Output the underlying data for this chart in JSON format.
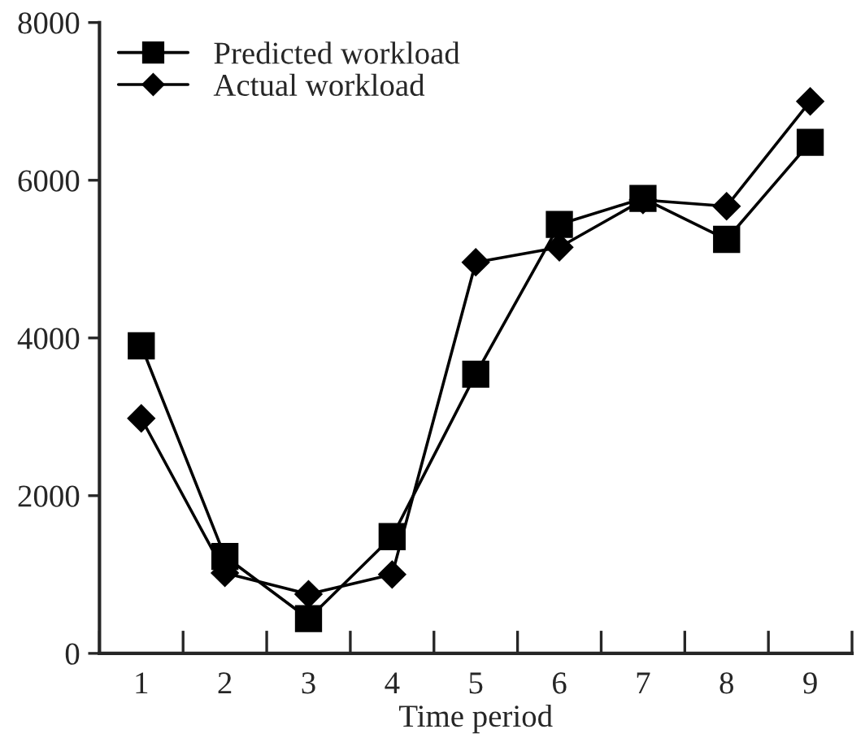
{
  "chart_data": {
    "type": "line",
    "xlabel": "Time period",
    "categories": [
      "1",
      "2",
      "3",
      "4",
      "5",
      "6",
      "7",
      "8",
      "9"
    ],
    "series": [
      {
        "name": "Predicted workload",
        "color": "#000000",
        "marker": "square",
        "values": [
          3900,
          1230,
          440,
          1480,
          3540,
          5440,
          5770,
          5250,
          6480
        ]
      },
      {
        "name": "Actual workload",
        "color": "#000000",
        "marker": "diamond",
        "values": [
          2980,
          1020,
          750,
          1000,
          4960,
          5150,
          5750,
          5670,
          7000
        ]
      }
    ],
    "ylim": [
      0,
      8000
    ],
    "yticks": [
      0,
      2000,
      4000,
      6000,
      8000
    ],
    "grid": false,
    "legend": "top left",
    "line_style": "solid"
  }
}
